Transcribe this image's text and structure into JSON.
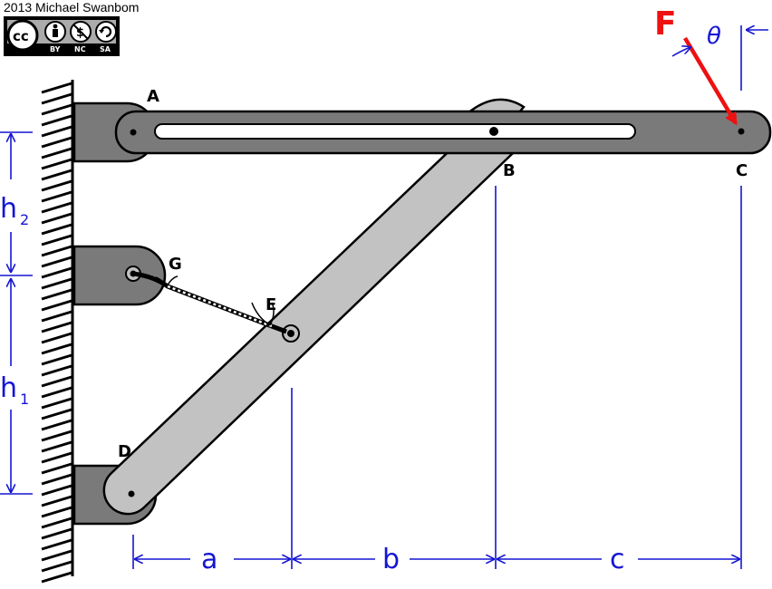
{
  "attribution": {
    "credit": "2013 Michael Swanbom",
    "license_terms": [
      "BY",
      "NC",
      "SA"
    ],
    "cc_text": "cc"
  },
  "points": {
    "A": "A",
    "B": "B",
    "C": "C",
    "D": "D",
    "E": "E",
    "G": "G"
  },
  "dimensions": {
    "a": "a",
    "b": "b",
    "c": "c",
    "h2": "h",
    "h2_sub": "2",
    "h1": "h",
    "h1_sub": "1"
  },
  "force": {
    "label": "F",
    "angle_label": "θ"
  },
  "colors": {
    "dimension": "#1515d4",
    "force": "#ee1111",
    "member_dark": "#7a7a7a",
    "member_light": "#c2c2c2"
  }
}
